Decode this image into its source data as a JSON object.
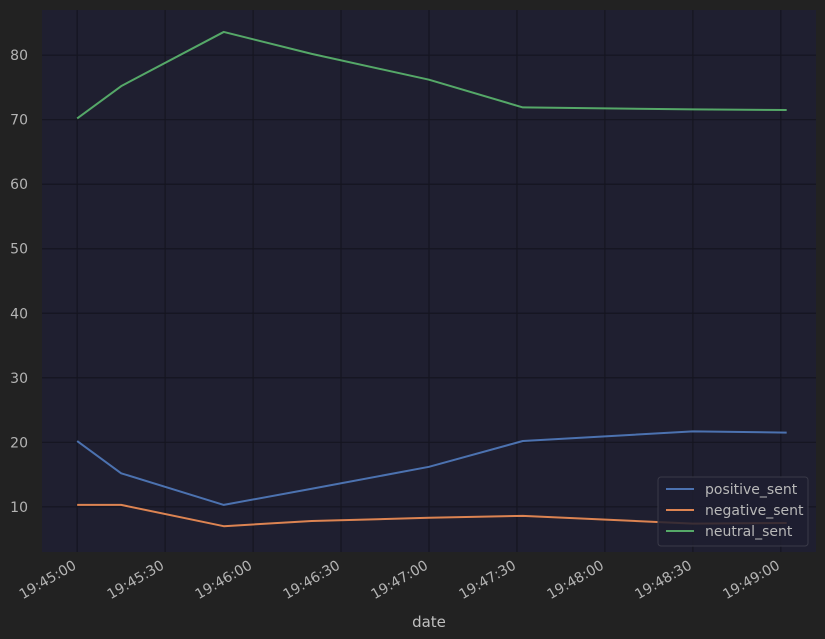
{
  "chart_data": {
    "type": "line",
    "x": [
      "19:45:00",
      "19:45:15",
      "19:45:50",
      "19:46:20",
      "19:47:00",
      "19:47:32",
      "19:48:30",
      "19:49:02"
    ],
    "xlabel": "date",
    "ylabel": "",
    "x_tick_labels": [
      "19:45:00",
      "19:45:30",
      "19:46:00",
      "19:46:30",
      "19:47:00",
      "19:47:30",
      "19:48:00",
      "19:48:30",
      "19:49:00"
    ],
    "y_ticks": [
      10,
      20,
      30,
      40,
      50,
      60,
      70,
      80
    ],
    "ylim": [
      3,
      87
    ],
    "xlim": [
      "19:44:48",
      "19:49:12"
    ],
    "grid": true,
    "legend_position": "bottom-right",
    "series": [
      {
        "name": "positive_sent",
        "color": "#4c72b0",
        "values": [
          20.2,
          15.2,
          10.3,
          12.8,
          16.2,
          20.2,
          21.7,
          21.5
        ]
      },
      {
        "name": "negative_sent",
        "color": "#dd8452",
        "values": [
          10.3,
          10.3,
          7.0,
          7.8,
          8.3,
          8.6,
          7.4,
          7.5
        ]
      },
      {
        "name": "neutral_sent",
        "color": "#55a868",
        "values": [
          70.2,
          75.2,
          83.6,
          80.2,
          76.2,
          71.9,
          71.6,
          71.5
        ]
      }
    ],
    "colors": {
      "figure_background": "#222222",
      "plot_background": "#1f1f30",
      "grid": "#151520"
    }
  }
}
